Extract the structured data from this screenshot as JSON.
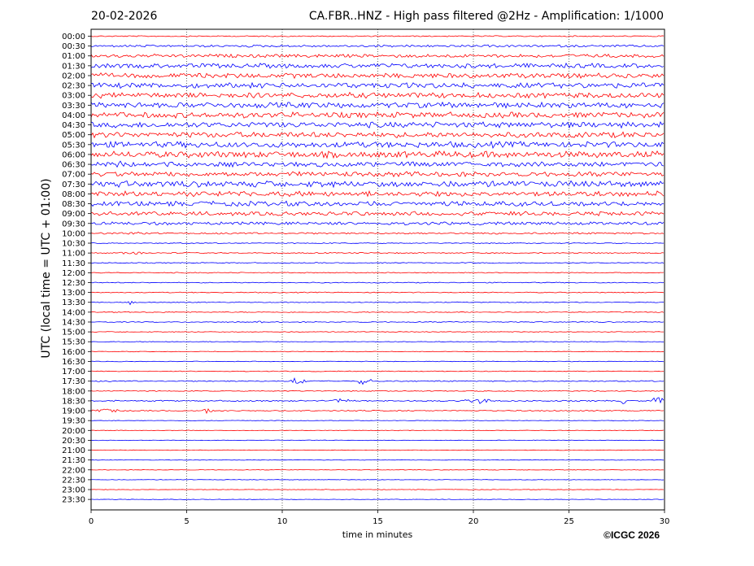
{
  "header": {
    "date": "20-02-2026",
    "title": "CA.FBR..HNZ - High pass filtered @2Hz - Amplification: 1/1000"
  },
  "footer": {
    "copyright": "©ICGC 2026"
  },
  "chart_data": {
    "type": "line",
    "title": "CA.FBR..HNZ - High pass filtered @2Hz - Amplification: 1/1000",
    "xlabel": "time in minutes",
    "ylabel": "UTC (local time = UTC + 01:00)",
    "xlim": [
      0,
      30
    ],
    "x_ticks": [
      0,
      5,
      10,
      15,
      20,
      25,
      30
    ],
    "grid": "vertical dotted at each x tick",
    "colors": {
      "odd_rows": "#ff0000",
      "even_rows": "#0000ff"
    },
    "rows": [
      "00:00",
      "00:30",
      "01:00",
      "01:30",
      "02:00",
      "02:30",
      "03:00",
      "03:30",
      "04:00",
      "04:30",
      "05:00",
      "05:30",
      "06:00",
      "06:30",
      "07:00",
      "07:30",
      "08:00",
      "08:30",
      "09:00",
      "09:30",
      "10:00",
      "10:30",
      "11:00",
      "11:30",
      "12:00",
      "12:30",
      "13:00",
      "13:30",
      "14:00",
      "14:30",
      "15:00",
      "15:30",
      "16:00",
      "16:30",
      "17:00",
      "17:30",
      "18:00",
      "18:30",
      "19:00",
      "19:30",
      "20:00",
      "20:30",
      "21:00",
      "21:30",
      "22:00",
      "22:30",
      "23:00",
      "23:30"
    ],
    "noise_level": [
      0.6,
      1.2,
      1.8,
      2.4,
      2.6,
      2.8,
      2.9,
      3.0,
      3.0,
      3.0,
      3.0,
      3.2,
      3.4,
      2.6,
      2.6,
      3.2,
      2.8,
      2.6,
      2.2,
      1.6,
      0.9,
      0.5,
      0.6,
      0.5,
      0.5,
      0.5,
      0.5,
      0.45,
      0.5,
      0.5,
      0.4,
      0.35,
      0.35,
      0.35,
      0.4,
      0.6,
      0.5,
      0.7,
      0.6,
      0.3,
      0.3,
      0.3,
      0.3,
      0.3,
      0.3,
      0.3,
      0.3,
      0.3
    ],
    "events": [
      {
        "row": "06:30",
        "x": [
          0,
          4.5
        ],
        "amp": 3.5
      },
      {
        "row": "10:00",
        "x": [
          0,
          4
        ],
        "amp": 1.6
      },
      {
        "row": "11:00",
        "x": [
          1.5,
          2.8
        ],
        "amp": 2.0
      },
      {
        "row": "13:30",
        "x": [
          1.8,
          2.3
        ],
        "amp": 2.5
      },
      {
        "row": "14:30",
        "x": [
          8.7,
          9.0
        ],
        "amp": 2.5
      },
      {
        "row": "17:30",
        "x": [
          10.3,
          11.3
        ],
        "amp": 4.5
      },
      {
        "row": "17:30",
        "x": [
          13.8,
          14.8
        ],
        "amp": 3.5
      },
      {
        "row": "18:30",
        "x": [
          12.5,
          13.5
        ],
        "amp": 2.5
      },
      {
        "row": "18:30",
        "x": [
          19.5,
          21
        ],
        "amp": 3.0
      },
      {
        "row": "18:30",
        "x": [
          27.7,
          28.0
        ],
        "amp": 6.0
      },
      {
        "row": "18:30",
        "x": [
          29.3,
          30
        ],
        "amp": 5.0
      },
      {
        "row": "19:00",
        "x": [
          0,
          1.5
        ],
        "amp": 2.5
      },
      {
        "row": "19:00",
        "x": [
          5.8,
          6.4
        ],
        "amp": 2.5
      }
    ]
  }
}
